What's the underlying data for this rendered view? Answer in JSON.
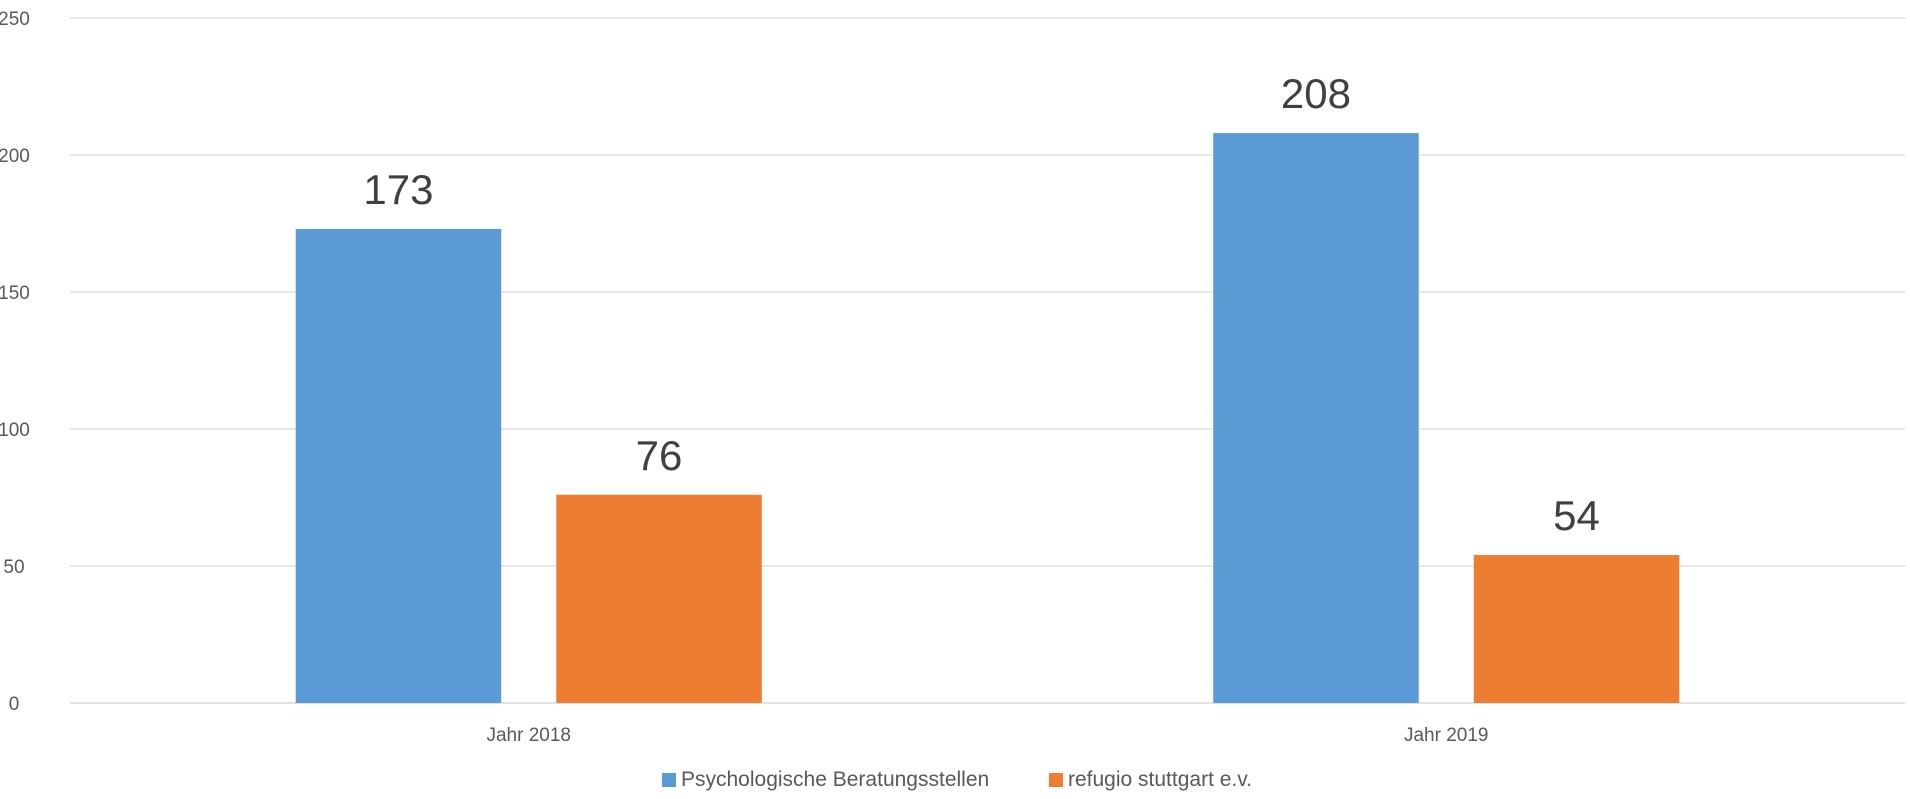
{
  "chart_data": {
    "type": "bar",
    "title": "",
    "xlabel": "",
    "ylabel": "",
    "categories": [
      "Jahr 2018",
      "Jahr 2019"
    ],
    "series": [
      {
        "name": "Psychologische Beratungsstellen",
        "values": [
          173,
          208
        ],
        "color": "#5b9bd5"
      },
      {
        "name": "refugio stuttgart e.v.",
        "values": [
          76,
          54
        ],
        "color": "#ed7d31"
      }
    ],
    "ylim": [
      0,
      250
    ],
    "yticks": [
      0,
      50,
      100,
      150,
      200,
      250
    ],
    "grid": true,
    "legend": "bottom",
    "data_labels": true
  }
}
